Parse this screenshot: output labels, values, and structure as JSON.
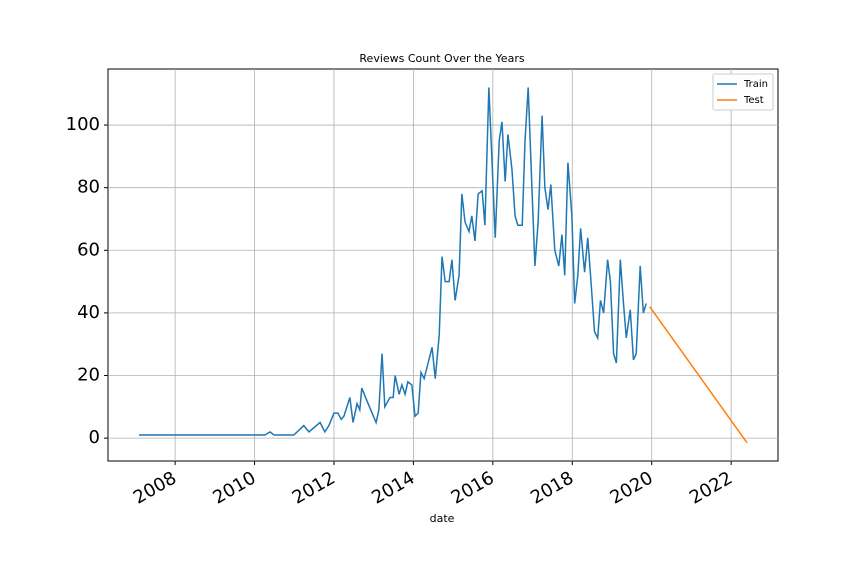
{
  "chart_data": {
    "type": "line",
    "title": "Reviews Count Over the Years",
    "x_label": "date",
    "xlim": [
      2006.31,
      2023.18
    ],
    "xticks": [
      2008,
      2010,
      2012,
      2014,
      2016,
      2018,
      2020,
      2022
    ],
    "ylim": [
      -7.3,
      117.9
    ],
    "yticks": [
      0,
      20,
      40,
      60,
      80,
      100
    ],
    "grid": true,
    "legend": "upper right",
    "series": [
      {
        "name": "Train",
        "color": "#1f77b4",
        "x": [
          2007.09,
          2010.26,
          2010.39,
          2010.49,
          2010.99,
          2011.24,
          2011.37,
          2011.65,
          2011.77,
          2011.87,
          2012.0,
          2012.1,
          2012.18,
          2012.25,
          2012.4,
          2012.48,
          2012.58,
          2012.65,
          2012.7,
          2012.86,
          2012.96,
          2013.06,
          2013.13,
          2013.21,
          2013.28,
          2013.41,
          2013.49,
          2013.54,
          2013.64,
          2013.71,
          2013.79,
          2013.86,
          2013.96,
          2014.04,
          2014.12,
          2014.19,
          2014.27,
          2014.47,
          2014.55,
          2014.65,
          2014.72,
          2014.8,
          2014.9,
          2014.97,
          2015.05,
          2015.15,
          2015.22,
          2015.3,
          2015.4,
          2015.47,
          2015.55,
          2015.63,
          2015.73,
          2015.8,
          2015.9,
          2016.06,
          2016.16,
          2016.23,
          2016.31,
          2016.38,
          2016.48,
          2016.56,
          2016.63,
          2016.74,
          2016.81,
          2016.89,
          2016.99,
          2017.06,
          2017.14,
          2017.24,
          2017.31,
          2017.39,
          2017.46,
          2017.56,
          2017.66,
          2017.74,
          2017.81,
          2017.89,
          2017.99,
          2018.06,
          2018.14,
          2018.21,
          2018.31,
          2018.39,
          2018.46,
          2018.56,
          2018.64,
          2018.71,
          2018.79,
          2018.89,
          2018.96,
          2019.04,
          2019.11,
          2019.21,
          2019.29,
          2019.36,
          2019.46,
          2019.54,
          2019.61,
          2019.71,
          2019.79,
          2019.86
        ],
        "values": [
          1,
          1,
          2,
          1,
          1,
          4,
          2,
          5,
          2,
          4,
          8,
          8,
          6,
          7,
          13,
          5,
          11,
          9,
          16,
          11,
          8,
          5,
          9,
          27,
          10,
          13,
          13,
          20,
          14,
          17,
          14,
          18,
          17,
          7,
          8,
          21,
          19,
          29,
          19,
          33,
          58,
          50,
          50,
          57,
          44,
          52,
          78,
          69,
          66,
          71,
          63,
          78,
          79,
          68,
          112,
          64,
          95,
          101,
          82,
          97,
          86,
          71,
          68,
          68,
          95,
          112,
          78,
          55,
          69,
          103,
          80,
          73,
          81,
          60,
          55,
          65,
          52,
          88,
          71,
          43,
          52,
          67,
          53,
          64,
          52,
          34,
          32,
          44,
          40,
          57,
          50,
          27,
          24,
          57,
          43,
          32,
          41,
          25,
          27,
          55,
          40,
          43
        ]
      },
      {
        "name": "Test",
        "color": "#ff7f0e",
        "x": [
          2019.95,
          2022.4
        ],
        "values": [
          42,
          -1.5
        ]
      }
    ]
  }
}
